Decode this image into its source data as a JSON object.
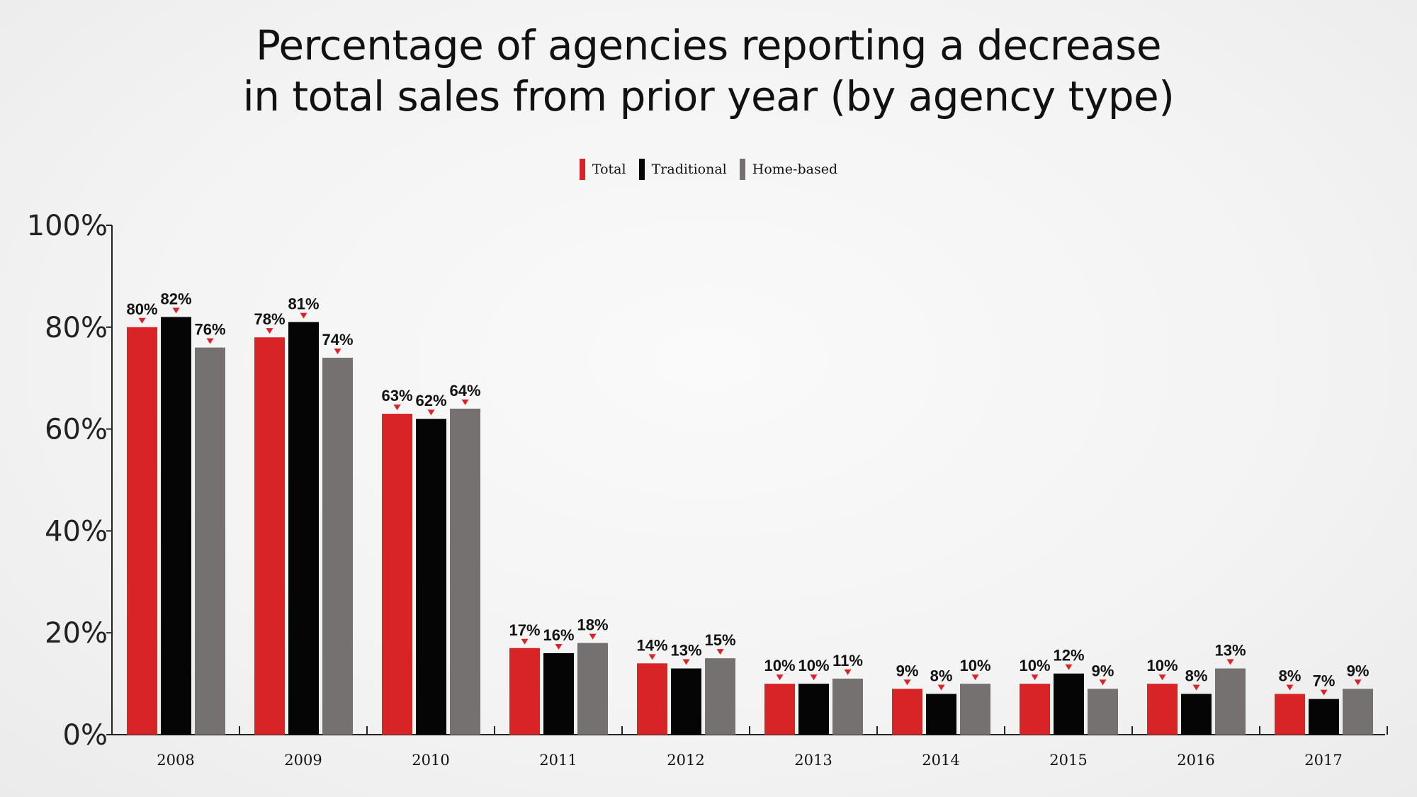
{
  "chart_data": {
    "type": "bar",
    "title": [
      "Percentage of agencies reporting a decrease",
      "in total sales from prior year (by agency type)"
    ],
    "xlabel": "",
    "ylabel": "",
    "ylim": [
      0,
      100
    ],
    "yticks": [
      0,
      20,
      40,
      60,
      80,
      100
    ],
    "ytick_labels": [
      "0%",
      "20%",
      "40%",
      "60%",
      "80%",
      "100%"
    ],
    "categories": [
      "2008",
      "2009",
      "2010",
      "2011",
      "2012",
      "2013",
      "2014",
      "2015",
      "2016",
      "2017"
    ],
    "series": [
      {
        "name": "Total",
        "color": "#d92427",
        "values": [
          80,
          78,
          63,
          17,
          14,
          10,
          9,
          10,
          10,
          8
        ]
      },
      {
        "name": "Traditional",
        "color": "#050505",
        "values": [
          82,
          81,
          62,
          16,
          13,
          10,
          8,
          12,
          8,
          7
        ]
      },
      {
        "name": "Home-based",
        "color": "#757170",
        "values": [
          76,
          74,
          64,
          18,
          15,
          11,
          10,
          9,
          13,
          9
        ]
      }
    ],
    "value_suffix": "%",
    "legend_position": "top-center",
    "grid": false,
    "marker_color": "#d92427"
  }
}
